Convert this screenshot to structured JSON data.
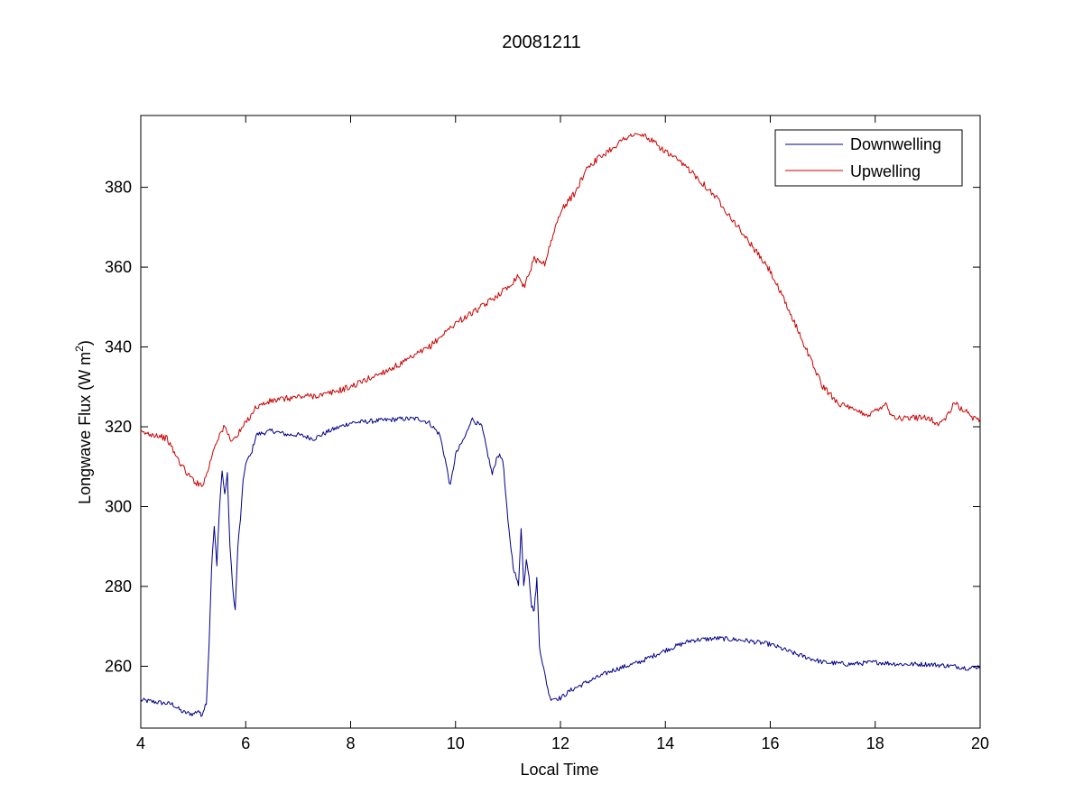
{
  "chart_data": {
    "type": "line",
    "title": "20081211",
    "xlabel": "Local Time",
    "ylabel": {
      "main": "Longwave Flux (W m",
      "sup": "2",
      "close": ")"
    },
    "xlim": [
      4,
      20
    ],
    "ylim": [
      244.5,
      398
    ],
    "xticks": [
      4,
      6,
      8,
      10,
      12,
      14,
      16,
      18,
      20
    ],
    "yticks": [
      260,
      280,
      300,
      320,
      340,
      360,
      380
    ],
    "grid": false,
    "legend_position": "top-right",
    "series": [
      {
        "name": "Downwelling",
        "color": "#00008b",
        "noise": 0.6,
        "points": [
          [
            4.0,
            251.5
          ],
          [
            4.3,
            251
          ],
          [
            4.6,
            250.5
          ],
          [
            4.8,
            248.5
          ],
          [
            5.0,
            248
          ],
          [
            5.1,
            249
          ],
          [
            5.15,
            247.5
          ],
          [
            5.25,
            251
          ],
          [
            5.3,
            265
          ],
          [
            5.35,
            285
          ],
          [
            5.4,
            295
          ],
          [
            5.45,
            285
          ],
          [
            5.5,
            300
          ],
          [
            5.55,
            309
          ],
          [
            5.6,
            303
          ],
          [
            5.65,
            308
          ],
          [
            5.7,
            290
          ],
          [
            5.75,
            280
          ],
          [
            5.8,
            274
          ],
          [
            5.85,
            290
          ],
          [
            5.9,
            297
          ],
          [
            5.95,
            306
          ],
          [
            6.0,
            311
          ],
          [
            6.1,
            313
          ],
          [
            6.2,
            318
          ],
          [
            6.5,
            319
          ],
          [
            6.8,
            318
          ],
          [
            7.0,
            318
          ],
          [
            7.3,
            317
          ],
          [
            7.6,
            319
          ],
          [
            8.0,
            321
          ],
          [
            8.5,
            321.5
          ],
          [
            9.0,
            322
          ],
          [
            9.3,
            322
          ],
          [
            9.5,
            321
          ],
          [
            9.7,
            318
          ],
          [
            9.8,
            312
          ],
          [
            9.9,
            305
          ],
          [
            10.0,
            313
          ],
          [
            10.2,
            318
          ],
          [
            10.3,
            322
          ],
          [
            10.5,
            320
          ],
          [
            10.6,
            314
          ],
          [
            10.7,
            308
          ],
          [
            10.8,
            313
          ],
          [
            10.9,
            312
          ],
          [
            11.0,
            296
          ],
          [
            11.1,
            285
          ],
          [
            11.2,
            280
          ],
          [
            11.25,
            295
          ],
          [
            11.3,
            280
          ],
          [
            11.35,
            287
          ],
          [
            11.4,
            283
          ],
          [
            11.45,
            275
          ],
          [
            11.5,
            274
          ],
          [
            11.55,
            282
          ],
          [
            11.6,
            265
          ],
          [
            11.7,
            258
          ],
          [
            11.8,
            252
          ],
          [
            12.0,
            252
          ],
          [
            12.2,
            254
          ],
          [
            12.5,
            256
          ],
          [
            13.0,
            259
          ],
          [
            13.5,
            261
          ],
          [
            14.0,
            264
          ],
          [
            14.5,
            266.5
          ],
          [
            15.0,
            267
          ],
          [
            15.5,
            266.5
          ],
          [
            16.0,
            265.5
          ],
          [
            16.5,
            263
          ],
          [
            17.0,
            261
          ],
          [
            17.5,
            260.5
          ],
          [
            18.0,
            261
          ],
          [
            18.5,
            260.5
          ],
          [
            19.0,
            260.5
          ],
          [
            19.5,
            260
          ],
          [
            19.8,
            259.5
          ],
          [
            20.0,
            260
          ]
        ]
      },
      {
        "name": "Upwelling",
        "color": "#cc0000",
        "noise": 0.8,
        "points": [
          [
            4.0,
            318.5
          ],
          [
            4.3,
            318
          ],
          [
            4.5,
            317
          ],
          [
            4.7,
            312
          ],
          [
            4.9,
            308
          ],
          [
            5.1,
            305.5
          ],
          [
            5.2,
            306
          ],
          [
            5.3,
            310
          ],
          [
            5.4,
            315
          ],
          [
            5.5,
            318
          ],
          [
            5.6,
            320
          ],
          [
            5.7,
            317
          ],
          [
            5.8,
            317
          ],
          [
            6.0,
            321
          ],
          [
            6.2,
            325
          ],
          [
            6.5,
            326.5
          ],
          [
            7.0,
            327.5
          ],
          [
            7.5,
            328
          ],
          [
            8.0,
            330
          ],
          [
            8.5,
            333
          ],
          [
            9.0,
            336
          ],
          [
            9.5,
            340
          ],
          [
            10.0,
            346
          ],
          [
            10.5,
            350
          ],
          [
            11.0,
            355
          ],
          [
            11.2,
            358
          ],
          [
            11.3,
            355
          ],
          [
            11.5,
            362
          ],
          [
            11.7,
            361
          ],
          [
            12.0,
            374
          ],
          [
            12.3,
            379
          ],
          [
            12.5,
            385
          ],
          [
            13.0,
            390
          ],
          [
            13.3,
            393
          ],
          [
            13.6,
            393
          ],
          [
            14.0,
            389
          ],
          [
            14.5,
            384
          ],
          [
            15.0,
            377
          ],
          [
            15.5,
            368
          ],
          [
            16.0,
            359
          ],
          [
            16.5,
            345
          ],
          [
            16.8,
            336
          ],
          [
            17.0,
            330
          ],
          [
            17.3,
            326
          ],
          [
            17.6,
            324
          ],
          [
            17.9,
            323
          ],
          [
            18.1,
            325
          ],
          [
            18.2,
            326
          ],
          [
            18.3,
            323
          ],
          [
            18.5,
            322
          ],
          [
            19.0,
            322.5
          ],
          [
            19.2,
            320.5
          ],
          [
            19.4,
            323
          ],
          [
            19.5,
            326
          ],
          [
            19.7,
            324
          ],
          [
            19.9,
            322
          ],
          [
            20.0,
            322
          ]
        ]
      }
    ]
  }
}
